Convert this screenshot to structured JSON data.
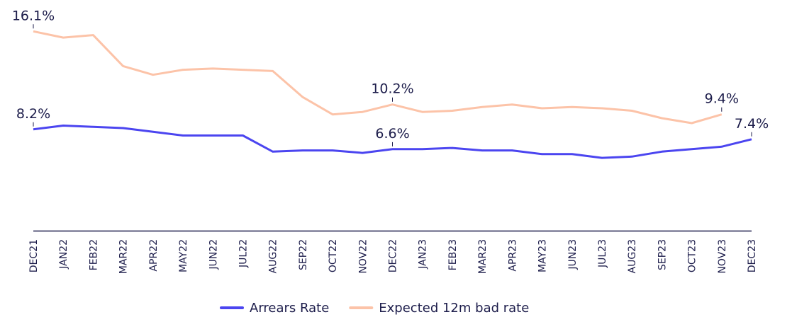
{
  "chart_data": {
    "type": "line",
    "categories": [
      "DEC21",
      "JAN22",
      "FEB22",
      "MAR22",
      "APR22",
      "MAY22",
      "JUN22",
      "JUL22",
      "AUG22",
      "SEP22",
      "OCT22",
      "NOV22",
      "DEC22",
      "JAN23",
      "FEB23",
      "MAR23",
      "APR23",
      "MAY23",
      "JUN23",
      "JUL23",
      "AUG23",
      "SEP23",
      "OCT23",
      "NOV23",
      "DEC23"
    ],
    "series": [
      {
        "name": "Arrears Rate",
        "color": "#4b45f0",
        "values": [
          8.2,
          8.5,
          8.4,
          8.3,
          8.0,
          7.7,
          7.7,
          7.7,
          6.4,
          6.5,
          6.5,
          6.3,
          6.6,
          6.6,
          6.7,
          6.5,
          6.5,
          6.2,
          6.2,
          5.9,
          6.0,
          6.4,
          6.6,
          6.8,
          7.4
        ],
        "value_labels": [
          "8.2%",
          null,
          null,
          null,
          null,
          null,
          null,
          null,
          null,
          null,
          null,
          null,
          "6.6%",
          null,
          null,
          null,
          null,
          null,
          null,
          null,
          null,
          null,
          null,
          null,
          "7.4%"
        ]
      },
      {
        "name": "Expected 12m bad rate",
        "color": "#fcc3a8",
        "values": [
          16.1,
          15.6,
          15.8,
          13.3,
          12.6,
          13.0,
          13.1,
          13.0,
          12.9,
          10.8,
          9.4,
          9.6,
          10.2,
          9.6,
          9.7,
          10.0,
          10.2,
          9.9,
          10.0,
          9.9,
          9.7,
          9.1,
          8.7,
          9.4,
          null
        ],
        "value_labels": [
          "16.1%",
          null,
          null,
          null,
          null,
          null,
          null,
          null,
          null,
          null,
          null,
          null,
          "10.2%",
          null,
          null,
          null,
          null,
          null,
          null,
          null,
          null,
          null,
          null,
          "9.4%",
          null
        ]
      }
    ],
    "ylim": [
      0,
      18
    ],
    "legend": "bottom"
  }
}
